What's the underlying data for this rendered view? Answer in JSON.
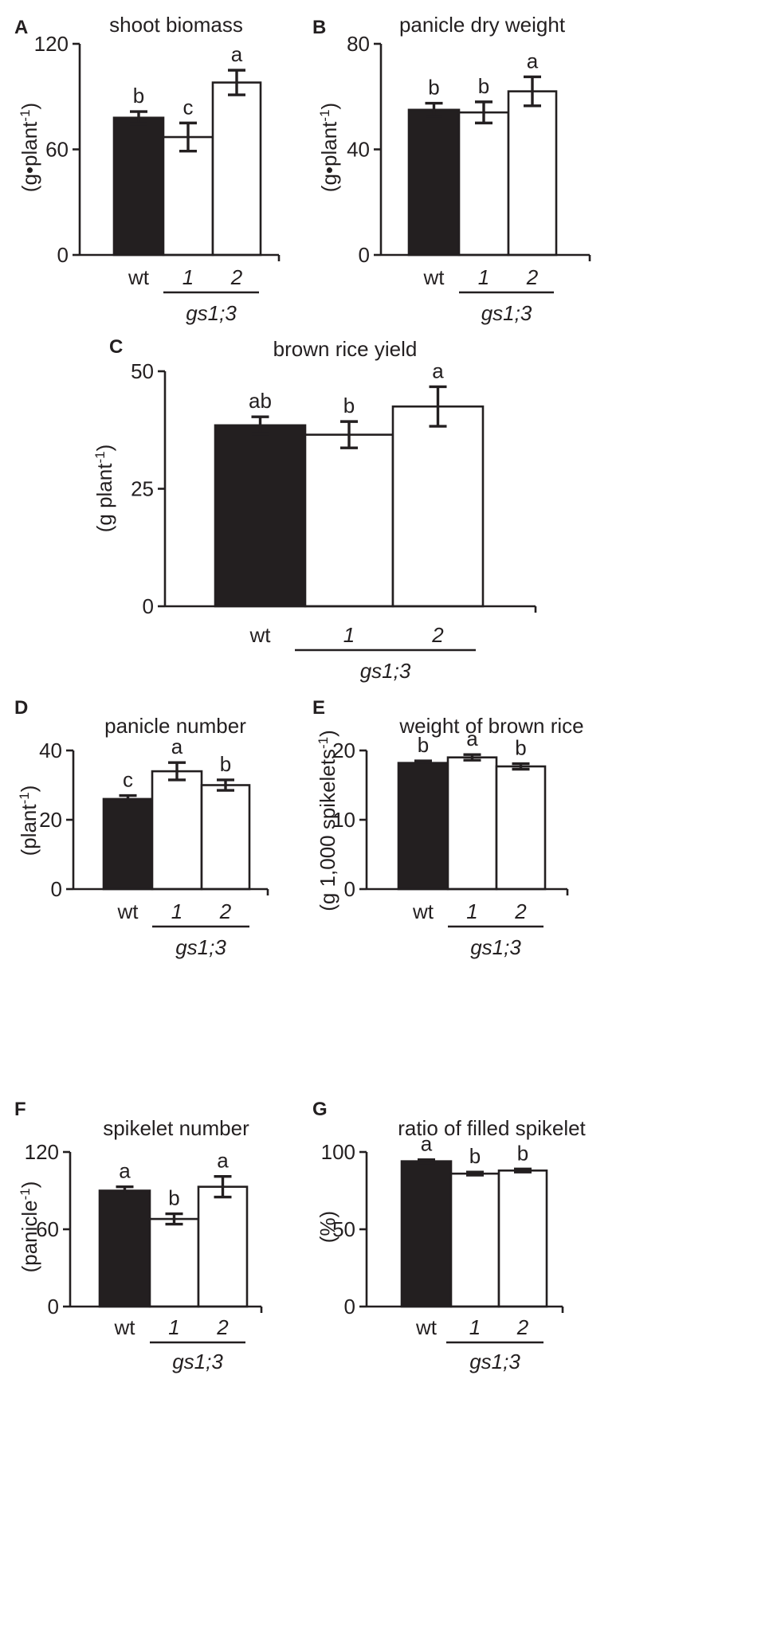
{
  "chart_data": [
    {
      "panel": "A",
      "type": "bar",
      "title": "shoot biomass",
      "ylabel": "(g•plant-1)",
      "ylabel_base": "(g•plant",
      "ylabel_sup": "-1",
      "ylabel_end": ")",
      "ylim": [
        0,
        120
      ],
      "yticks": [
        "0",
        "60",
        "120"
      ],
      "categories": [
        "wt",
        "1",
        "2"
      ],
      "values": [
        78,
        67,
        98
      ],
      "errors": [
        3.5,
        8,
        7
      ],
      "letters": [
        "b",
        "c",
        "a"
      ],
      "group_label": "gs1;3"
    },
    {
      "panel": "B",
      "type": "bar",
      "title": "panicle dry weight",
      "ylabel": "(g•plant-1)",
      "ylabel_base": "(g•plant",
      "ylabel_sup": "-1",
      "ylabel_end": ")",
      "ylim": [
        0,
        80
      ],
      "yticks": [
        "0",
        "40",
        "80"
      ],
      "categories": [
        "wt",
        "1",
        "2"
      ],
      "values": [
        55,
        54,
        62
      ],
      "errors": [
        2.5,
        4,
        5.5
      ],
      "letters": [
        "b",
        "b",
        "a"
      ],
      "group_label": "gs1;3"
    },
    {
      "panel": "C",
      "type": "bar",
      "title": "brown rice yield",
      "ylabel": "(g plant-1)",
      "ylabel_base": "(g plant",
      "ylabel_sup": "-1",
      "ylabel_end": ")",
      "ylim": [
        0,
        50
      ],
      "yticks": [
        "0",
        "25",
        "50"
      ],
      "categories": [
        "wt",
        "1",
        "2"
      ],
      "values": [
        38.5,
        36.5,
        42.5
      ],
      "errors": [
        1.8,
        2.8,
        4.2
      ],
      "letters": [
        "ab",
        "b",
        "a"
      ],
      "group_label": "gs1;3"
    },
    {
      "panel": "D",
      "type": "bar",
      "title": "panicle number",
      "ylabel": "(plant-1)",
      "ylabel_base": "(plant",
      "ylabel_sup": "-1",
      "ylabel_end": ")",
      "ylim": [
        0,
        40
      ],
      "yticks": [
        "0",
        "20",
        "40"
      ],
      "categories": [
        "wt",
        "1",
        "2"
      ],
      "values": [
        26,
        34,
        30
      ],
      "errors": [
        1,
        2.5,
        1.5
      ],
      "letters": [
        "c",
        "a",
        "b"
      ],
      "group_label": "gs1;3"
    },
    {
      "panel": "E",
      "type": "bar",
      "title": "weight of brown rice",
      "ylabel": "(g 1,000 spikelets-1)",
      "ylabel_base": "(g 1,000 spikelets",
      "ylabel_sup": "-1",
      "ylabel_end": ")",
      "ylim": [
        0,
        20
      ],
      "yticks": [
        "0",
        "10",
        "20"
      ],
      "categories": [
        "wt",
        "1",
        "2"
      ],
      "values": [
        18.2,
        19,
        17.7
      ],
      "errors": [
        0.3,
        0.4,
        0.4
      ],
      "letters": [
        "b",
        "a",
        "b"
      ],
      "group_label": "gs1;3"
    },
    {
      "panel": "F",
      "type": "bar",
      "title": "spikelet number",
      "ylabel": "(panicle-1)",
      "ylabel_base": "(panicle",
      "ylabel_sup": "-1",
      "ylabel_end": ")",
      "ylim": [
        0,
        120
      ],
      "yticks": [
        "0",
        "60",
        "120"
      ],
      "categories": [
        "wt",
        "1",
        "2"
      ],
      "values": [
        90,
        68,
        93
      ],
      "errors": [
        3,
        4,
        8
      ],
      "letters": [
        "a",
        "b",
        "a"
      ],
      "group_label": "gs1;3"
    },
    {
      "panel": "G",
      "type": "bar",
      "title": "ratio of filled spikelet",
      "ylabel": "(%)",
      "ylabel_base": "(%)",
      "ylabel_sup": "",
      "ylabel_end": "",
      "ylim": [
        0,
        100
      ],
      "yticks": [
        "0",
        "50",
        "100"
      ],
      "categories": [
        "wt",
        "1",
        "2"
      ],
      "values": [
        94,
        86,
        88
      ],
      "errors": [
        1,
        1,
        1
      ],
      "letters": [
        "a",
        "b",
        "b"
      ],
      "group_label": "gs1;3"
    }
  ],
  "colors": {
    "wt_fill": "#231f20",
    "mutant_fill": "#ffffff",
    "ink": "#231f20"
  }
}
